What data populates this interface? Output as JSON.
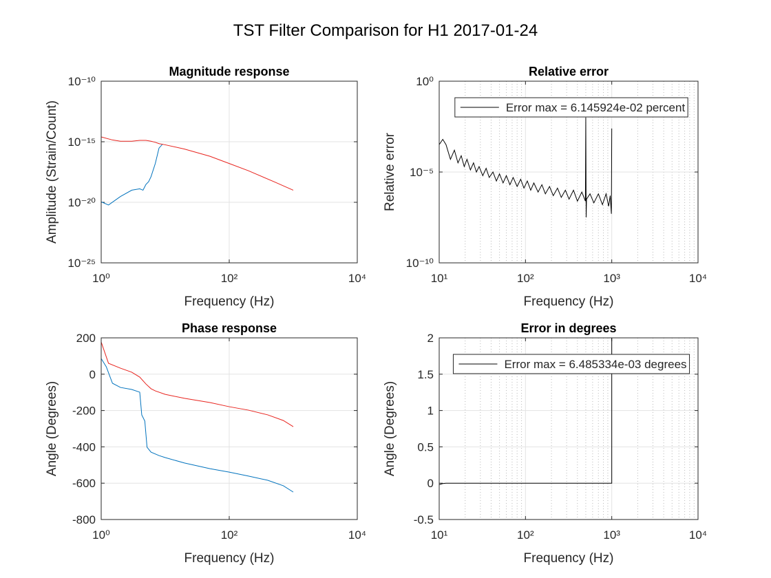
{
  "title": "TST Filter Comparison for H1 2017-01-24",
  "chart_data": [
    {
      "type": "line",
      "title": "Magnitude response",
      "xlabel": "Frequency (Hz)",
      "ylabel": "Amplitude (Strain/Count)",
      "xscale": "log",
      "yscale": "log",
      "grid": true,
      "minor_grid": false,
      "xlim": [
        1,
        10000
      ],
      "xticks": [
        {
          "value": 1,
          "label": "10⁰"
        },
        {
          "value": 100,
          "label": "10²"
        },
        {
          "value": 10000,
          "label": "10⁴"
        }
      ],
      "ylim": [
        1e-25,
        1e-10
      ],
      "yticks": [
        {
          "value": 1e-25,
          "label": "10⁻²⁵"
        },
        {
          "value": 1e-20,
          "label": "10⁻²⁰"
        },
        {
          "value": 1e-15,
          "label": "10⁻¹⁵"
        },
        {
          "value": 1e-10,
          "label": "10⁻¹⁰"
        }
      ],
      "series": [
        {
          "color": "#0072bd",
          "x": [
            1,
            1.3,
            2,
            3,
            4,
            4.5,
            5,
            5.5,
            6,
            7,
            8,
            9
          ],
          "values": [
            1.1e-20,
            6e-21,
            3e-20,
            1e-19,
            1.3e-19,
            1e-19,
            3e-19,
            5e-19,
            1.3e-18,
            1.6e-17,
            3e-16,
            6e-16
          ]
        },
        {
          "color": "#e8231d",
          "x": [
            1,
            1.5,
            2,
            3,
            4,
            5,
            6,
            7,
            8,
            10,
            20,
            50,
            100,
            200,
            500,
            1000
          ],
          "values": [
            2.5e-15,
            1.4e-15,
            1.1e-15,
            1.1e-15,
            1.3e-15,
            1.3e-15,
            1.1e-15,
            9e-16,
            7e-16,
            5.6e-16,
            2.5e-16,
            6.3e-17,
            1.6e-17,
            4e-18,
            5e-19,
            1e-19
          ]
        }
      ]
    },
    {
      "type": "line",
      "title": "Relative error",
      "xlabel": "Frequency (Hz)",
      "ylabel": "Relative error",
      "xscale": "log",
      "yscale": "log",
      "grid": true,
      "minor_grid": true,
      "legend": "north",
      "xlim": [
        10,
        10000
      ],
      "xticks": [
        {
          "value": 10,
          "label": "10¹"
        },
        {
          "value": 100,
          "label": "10²"
        },
        {
          "value": 1000,
          "label": "10³"
        },
        {
          "value": 10000,
          "label": "10⁴"
        }
      ],
      "ylim": [
        1e-10,
        1
      ],
      "yticks": [
        {
          "value": 1e-10,
          "label": "10⁻¹⁰"
        },
        {
          "value": 1e-05,
          "label": "10⁻⁵"
        },
        {
          "value": 1,
          "label": "10⁰"
        }
      ],
      "series": [
        {
          "name": "Error max = 6.145924e-02 percent",
          "color": "#000000",
          "x": [
            10,
            11,
            12,
            13.5,
            15,
            16.5,
            18,
            19.5,
            21,
            23,
            25,
            27,
            29,
            32,
            35,
            38,
            42,
            46,
            50,
            55,
            60,
            66,
            72,
            80,
            88,
            96,
            105,
            115,
            125,
            140,
            155,
            170,
            190,
            210,
            235,
            260,
            290,
            320,
            360,
            400,
            450,
            495,
            500,
            505,
            510,
            560,
            620,
            700,
            780,
            860,
            920,
            960,
            990,
            1000
          ],
          "values": [
            0.00032,
            0.00063,
            0.00032,
            5e-05,
            0.00016,
            3.2e-05,
            7.9e-05,
            2e-05,
            5e-05,
            1.3e-05,
            3.2e-05,
            1e-05,
            2e-05,
            6.3e-06,
            1.6e-05,
            5e-06,
            1e-05,
            3.2e-06,
            7.9e-06,
            2.5e-06,
            6.3e-06,
            2e-06,
            5e-06,
            1.6e-06,
            4e-06,
            1.3e-06,
            3.2e-06,
            1e-06,
            2.5e-06,
            7.9e-07,
            2e-06,
            6.3e-07,
            1.6e-06,
            5e-07,
            1.3e-06,
            4e-07,
            1e-06,
            3.2e-07,
            1e-06,
            2.5e-07,
            7.9e-07,
            2.5e-07,
            0.01,
            3.2e-08,
            3.2e-07,
            6.3e-07,
            2e-07,
            6.3e-07,
            1.6e-07,
            6.3e-07,
            1.3e-07,
            5e-07,
            5e-08,
            0.0025
          ]
        }
      ]
    },
    {
      "type": "line",
      "title": "Phase response",
      "xlabel": "Frequency (Hz)",
      "ylabel": "Angle (Degrees)",
      "xscale": "log",
      "yscale": "linear",
      "grid": true,
      "minor_grid": false,
      "xlim": [
        1,
        10000
      ],
      "xticks": [
        {
          "value": 1,
          "label": "10⁰"
        },
        {
          "value": 100,
          "label": "10²"
        },
        {
          "value": 10000,
          "label": "10⁴"
        }
      ],
      "ylim": [
        -800,
        200
      ],
      "yticks": [
        -800,
        -600,
        -400,
        -200,
        0,
        200
      ],
      "series": [
        {
          "color": "#e8231d",
          "x": [
            1,
            1.3,
            2,
            3,
            4,
            5,
            6,
            7,
            10,
            20,
            50,
            100,
            200,
            400,
            700,
            1000
          ],
          "values": [
            177,
            60,
            33,
            11,
            -16,
            -54,
            -80,
            -92,
            -111,
            -133,
            -156,
            -179,
            -198,
            -224,
            -255,
            -289
          ]
        },
        {
          "color": "#0072bd",
          "x": [
            1,
            1.2,
            1.5,
            2,
            3,
            4,
            4.3,
            4.8,
            5.2,
            6,
            8,
            10,
            20,
            50,
            100,
            200,
            400,
            700,
            1000
          ],
          "values": [
            86,
            41,
            -50,
            -73,
            -84,
            -99,
            -224,
            -258,
            -402,
            -429,
            -448,
            -459,
            -489,
            -520,
            -539,
            -561,
            -584,
            -614,
            -649
          ]
        }
      ]
    },
    {
      "type": "line",
      "title": "Error in degrees",
      "xlabel": "Frequency (Hz)",
      "ylabel": "Angle (Degrees)",
      "xscale": "log",
      "yscale": "linear",
      "grid": true,
      "minor_grid": true,
      "legend": "north",
      "xlim": [
        10,
        10000
      ],
      "xticks": [
        {
          "value": 10,
          "label": "10¹"
        },
        {
          "value": 100,
          "label": "10²"
        },
        {
          "value": 1000,
          "label": "10³"
        },
        {
          "value": 10000,
          "label": "10⁴"
        }
      ],
      "ylim": [
        -0.5,
        2
      ],
      "yticks": [
        -0.5,
        0,
        0.5,
        1,
        1.5,
        2
      ],
      "series": [
        {
          "name": "Error max = 6.485334e-03 degrees",
          "color": "#000000",
          "x": [
            10,
            11,
            12,
            20,
            100,
            1000,
            1000
          ],
          "values": [
            -0.02,
            -0.005,
            0,
            0,
            0,
            0,
            2
          ]
        }
      ]
    }
  ]
}
